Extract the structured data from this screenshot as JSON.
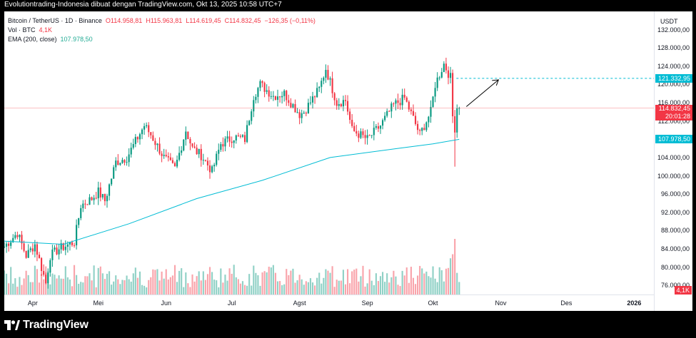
{
  "header": {
    "text": "Evolutiontrading-Indonesia dibuat dengan TradingView.com, Okt 13, 2025 10:58 UTC+7"
  },
  "legend": {
    "symbol": "Bitcoin / TetherUS · 1D · Binance",
    "open": "O114.958,81",
    "high": "H115.963,81",
    "low": "L114.619,45",
    "close": "C114.832,45",
    "change": "−126,35 (−0,11%)",
    "vol_label": "Vol · BTC",
    "vol_value": "4,1K",
    "ema_label": "EMA (200, close)",
    "ema_value": "107.978,50"
  },
  "price_axis": {
    "currency": "USDT",
    "labels": [
      "132.000,00",
      "128.000,00",
      "124.000,00",
      "120.000,00",
      "116.000,00",
      "112.000,00",
      "108.000,00",
      "104.000,00",
      "100.000,00",
      "96.000,00",
      "92.000,00",
      "88.000,00",
      "84.000,00",
      "80.000,00",
      "76.000,00"
    ],
    "tag_target": "121.332,95",
    "tag_price": "114.832,45",
    "tag_timer": "20:01:28",
    "tag_ema": "107.978,50",
    "tag_volume": "4,1K"
  },
  "time_axis": {
    "labels": [
      "Apr",
      "Mei",
      "Jun",
      "Jul",
      "Agst",
      "Sep",
      "Okt",
      "Nov",
      "Des",
      "2026"
    ]
  },
  "chart_data": {
    "type": "candlestick",
    "symbol": "BTCUSDT",
    "interval": "1D",
    "x_range": [
      "2025-03-19",
      "2026-01-10"
    ],
    "y_range": [
      74000,
      136000
    ],
    "last_close": 114832.45,
    "ema200_last": 107978.5,
    "target_level": 121332.95,
    "volume_last": "4,1K",
    "annotation": "arrow pointing up toward 121.332,95 target",
    "approx_path": [
      [
        "2025-03-19",
        84500
      ],
      [
        "2025-03-25",
        87500
      ],
      [
        "2025-03-29",
        82500
      ],
      [
        "2025-04-02",
        85000
      ],
      [
        "2025-04-07",
        76500
      ],
      [
        "2025-04-09",
        82500
      ],
      [
        "2025-04-13",
        84000
      ],
      [
        "2025-04-20",
        85500
      ],
      [
        "2025-04-23",
        93500
      ],
      [
        "2025-04-28",
        95000
      ],
      [
        "2025-05-01",
        96500
      ],
      [
        "2025-05-04",
        94500
      ],
      [
        "2025-05-09",
        103000
      ],
      [
        "2025-05-14",
        104000
      ],
      [
        "2025-05-22",
        111000
      ],
      [
        "2025-05-25",
        109000
      ],
      [
        "2025-05-31",
        104000
      ],
      [
        "2025-06-05",
        101500
      ],
      [
        "2025-06-10",
        110000
      ],
      [
        "2025-06-13",
        106000
      ],
      [
        "2025-06-17",
        104500
      ],
      [
        "2025-06-22",
        101000
      ],
      [
        "2025-06-26",
        107000
      ],
      [
        "2025-07-02",
        108500
      ],
      [
        "2025-07-07",
        108000
      ],
      [
        "2025-07-11",
        117500
      ],
      [
        "2025-07-14",
        120000
      ],
      [
        "2025-07-20",
        117500
      ],
      [
        "2025-07-25",
        118000
      ],
      [
        "2025-08-01",
        113500
      ],
      [
        "2025-08-03",
        114000
      ],
      [
        "2025-08-10",
        119000
      ],
      [
        "2025-08-13",
        123500
      ],
      [
        "2025-08-18",
        116000
      ],
      [
        "2025-08-22",
        116500
      ],
      [
        "2025-08-25",
        110000
      ],
      [
        "2025-09-01",
        108000
      ],
      [
        "2025-09-07",
        111000
      ],
      [
        "2025-09-13",
        115500
      ],
      [
        "2025-09-18",
        117000
      ],
      [
        "2025-09-22",
        112500
      ],
      [
        "2025-09-25",
        109000
      ],
      [
        "2025-09-30",
        114000
      ],
      [
        "2025-10-02",
        120000
      ],
      [
        "2025-10-06",
        124500
      ],
      [
        "2025-10-09",
        121500
      ],
      [
        "2025-10-10",
        113000
      ],
      [
        "2025-10-11",
        110500
      ],
      [
        "2025-10-12",
        115000
      ],
      [
        "2025-10-13",
        114832
      ]
    ],
    "ema_path": [
      [
        "2025-03-19",
        85700
      ],
      [
        "2025-04-15",
        85000
      ],
      [
        "2025-05-15",
        89500
      ],
      [
        "2025-06-15",
        95000
      ],
      [
        "2025-07-15",
        99000
      ],
      [
        "2025-08-15",
        104000
      ],
      [
        "2025-09-15",
        106000
      ],
      [
        "2025-10-01",
        107000
      ],
      [
        "2025-10-13",
        107978.5
      ]
    ]
  }
}
